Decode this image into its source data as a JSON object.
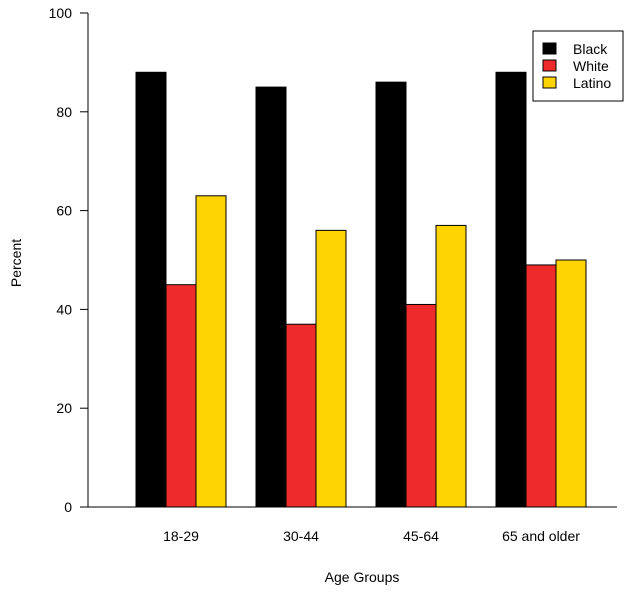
{
  "chart_data": {
    "type": "bar",
    "title": "",
    "xlabel": "Age Groups",
    "ylabel": "Percent",
    "ylim": [
      0,
      100
    ],
    "yticks": [
      0,
      20,
      40,
      60,
      80,
      100
    ],
    "categories": [
      "18-29",
      "30-44",
      "45-64",
      "65 and older"
    ],
    "series": [
      {
        "name": "Black",
        "color": "#000000",
        "values": [
          88,
          85,
          86,
          88
        ]
      },
      {
        "name": "White",
        "color": "#ee2a2a",
        "values": [
          45,
          37,
          41,
          49
        ]
      },
      {
        "name": "Latino",
        "color": "#fdd400",
        "values": [
          63,
          56,
          57,
          50
        ]
      }
    ],
    "legend_position": "top-right",
    "grid": false
  }
}
